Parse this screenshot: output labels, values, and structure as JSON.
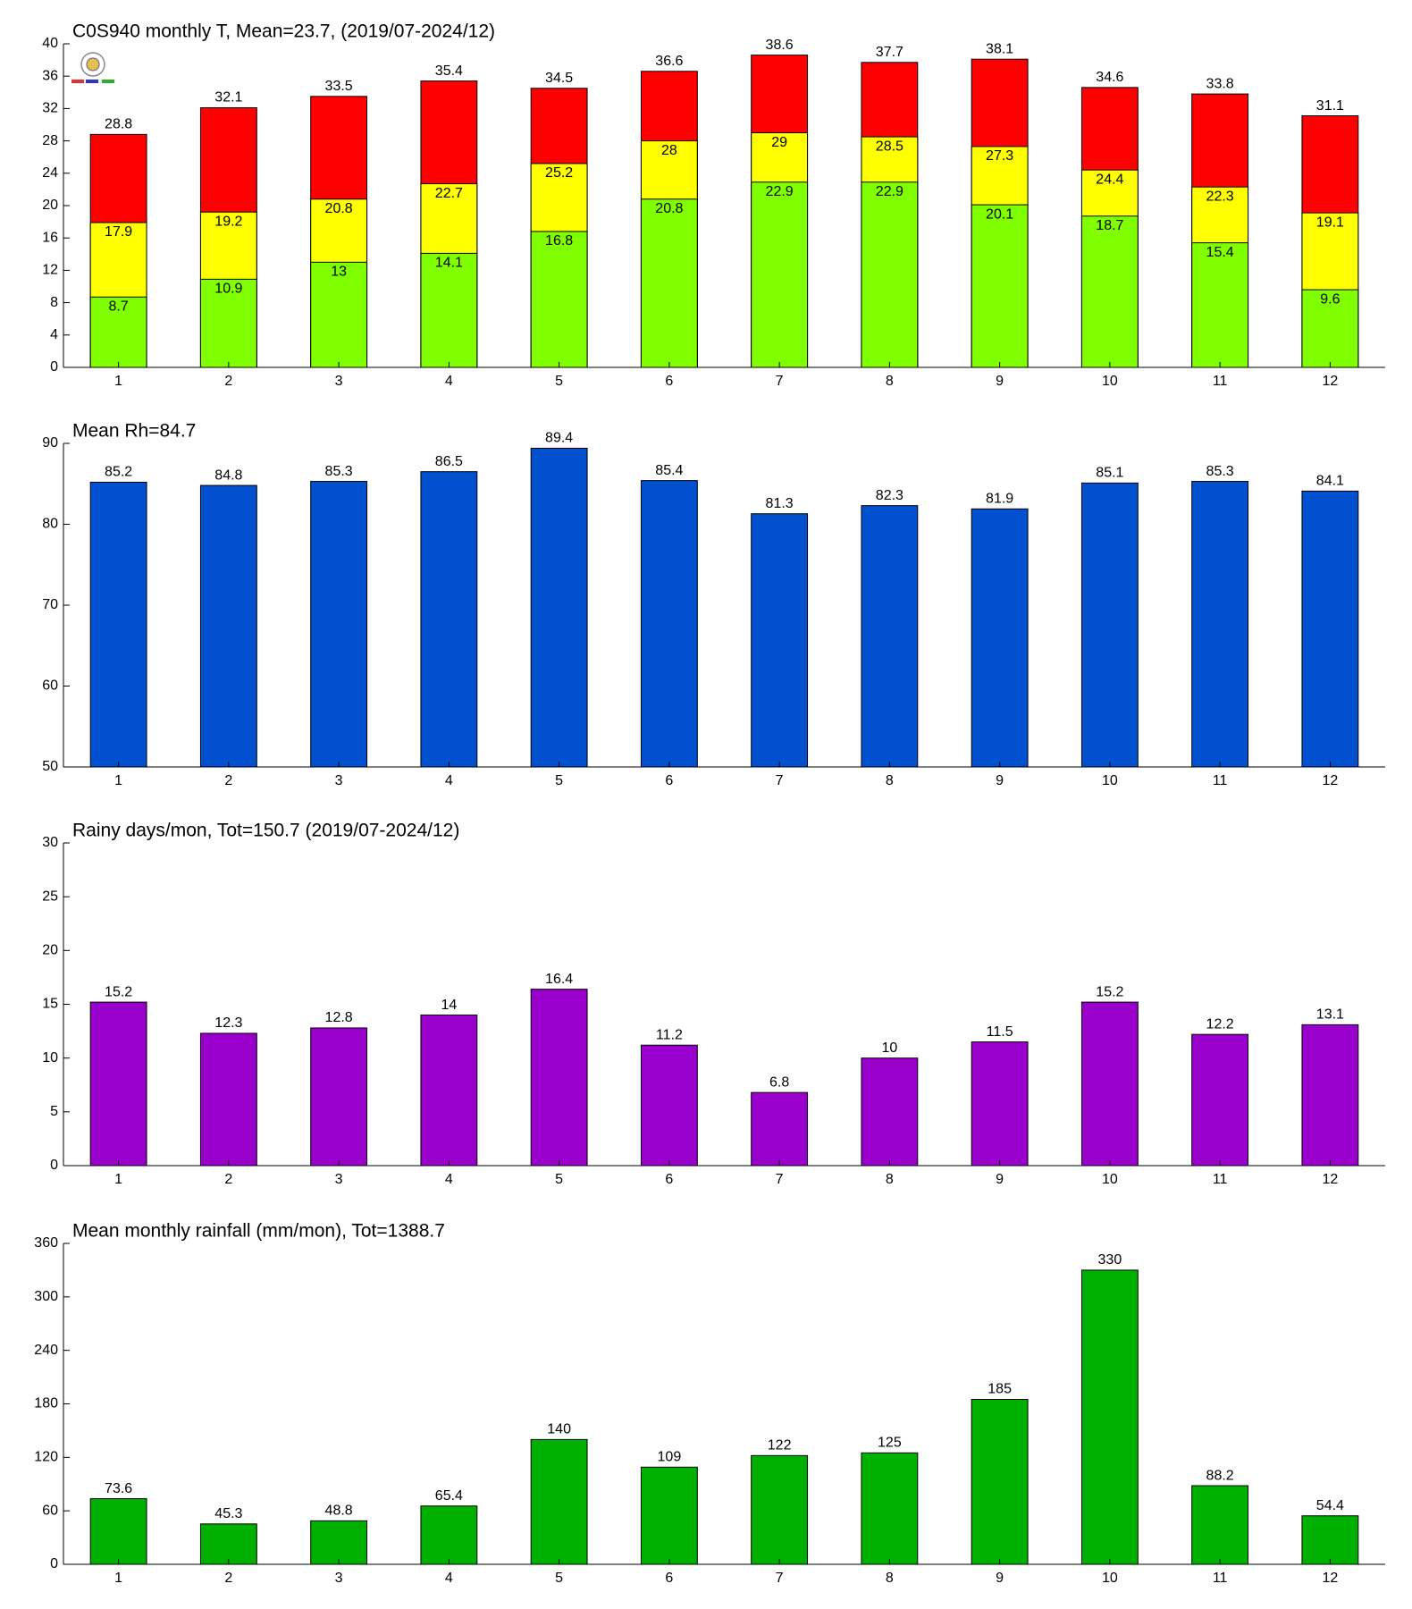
{
  "chart_data": [
    {
      "type": "bar",
      "title": "C0S940 monthly T, Mean=23.7, (2019/07-2024/12)",
      "categories": [
        "1",
        "2",
        "3",
        "4",
        "5",
        "6",
        "7",
        "8",
        "9",
        "10",
        "11",
        "12"
      ],
      "series": [
        {
          "color": "#80ff00",
          "values": [
            8.7,
            10.9,
            13,
            14.1,
            16.8,
            20.8,
            22.9,
            22.9,
            20.1,
            18.7,
            15.4,
            9.6
          ]
        },
        {
          "color": "#ffff00",
          "values": [
            17.9,
            19.2,
            20.8,
            22.7,
            25.2,
            28,
            29,
            28.5,
            27.3,
            24.4,
            22.3,
            19.1
          ]
        },
        {
          "color": "#ff0000",
          "values": [
            28.8,
            32.1,
            33.5,
            35.4,
            34.5,
            36.6,
            38.6,
            37.7,
            38.1,
            34.6,
            33.8,
            31.1
          ]
        }
      ],
      "ylim": [
        0,
        40
      ],
      "yticks": [
        0,
        4,
        8,
        12,
        16,
        20,
        24,
        28,
        32,
        36,
        40
      ]
    },
    {
      "type": "bar",
      "title": "Mean Rh=84.7",
      "categories": [
        "1",
        "2",
        "3",
        "4",
        "5",
        "6",
        "7",
        "8",
        "9",
        "10",
        "11",
        "12"
      ],
      "series": [
        {
          "color": "#0050d0",
          "values": [
            85.2,
            84.8,
            85.3,
            86.5,
            89.4,
            85.4,
            81.3,
            82.3,
            81.9,
            85.1,
            85.3,
            84.1
          ]
        }
      ],
      "ylim": [
        50,
        90
      ],
      "yticks": [
        50,
        60,
        70,
        80,
        90
      ]
    },
    {
      "type": "bar",
      "title": "Rainy days/mon, Tot=150.7 (2019/07-2024/12)",
      "categories": [
        "1",
        "2",
        "3",
        "4",
        "5",
        "6",
        "7",
        "8",
        "9",
        "10",
        "11",
        "12"
      ],
      "series": [
        {
          "color": "#9900cc",
          "values": [
            15.2,
            12.3,
            12.8,
            14,
            16.4,
            11.2,
            6.8,
            10,
            11.5,
            15.2,
            12.2,
            13.1
          ]
        }
      ],
      "ylim": [
        0,
        30
      ],
      "yticks": [
        0,
        5,
        10,
        15,
        20,
        25,
        30
      ]
    },
    {
      "type": "bar",
      "title": "Mean monthly rainfall (mm/mon), Tot=1388.7",
      "categories": [
        "1",
        "2",
        "3",
        "4",
        "5",
        "6",
        "7",
        "8",
        "9",
        "10",
        "11",
        "12"
      ],
      "series": [
        {
          "color": "#00b000",
          "values": [
            73.6,
            45.3,
            48.8,
            65.4,
            140,
            109,
            122,
            125,
            185,
            330,
            88.2,
            54.4
          ]
        }
      ],
      "ylim": [
        0,
        360
      ],
      "yticks": [
        0,
        60,
        120,
        180,
        240,
        300,
        360
      ]
    }
  ]
}
